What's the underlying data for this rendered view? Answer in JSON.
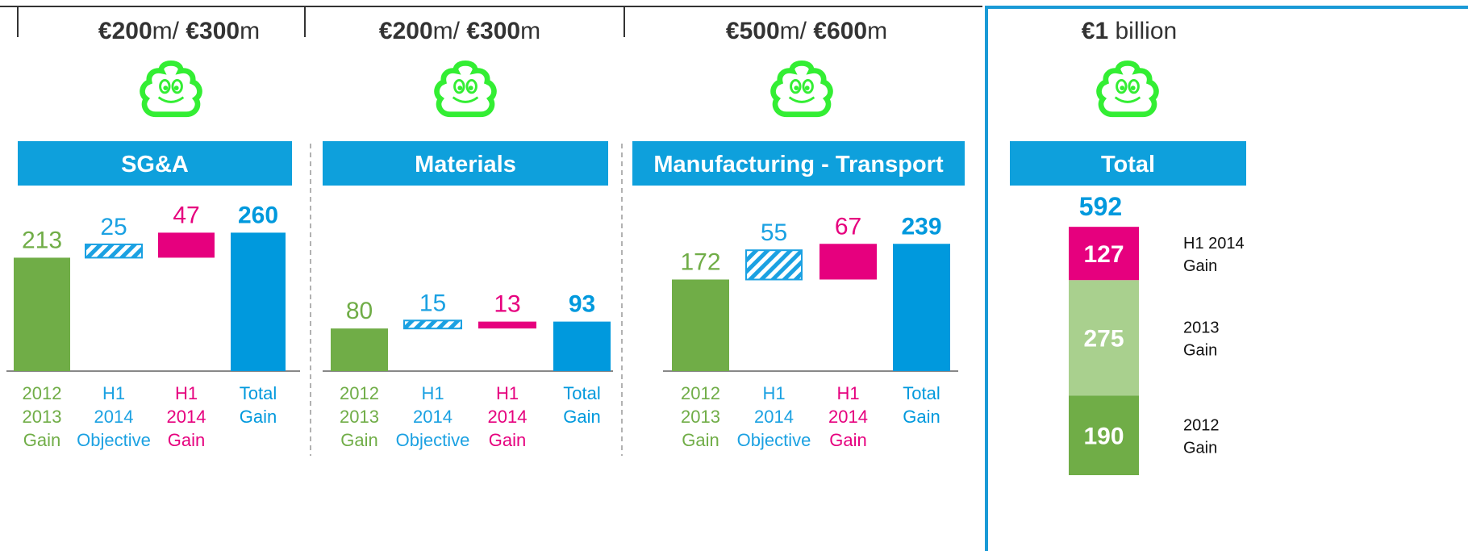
{
  "panels": [
    {
      "target": [
        {
          "text": "€200",
          "bold": true
        },
        {
          "text": "m/ ",
          "bold": false
        },
        {
          "text": "€300",
          "bold": true
        },
        {
          "text": "m",
          "bold": false
        }
      ],
      "chart_data": {
        "type": "waterfall",
        "title": "SG&A",
        "categories": [
          [
            "2012",
            "2013",
            "Gain"
          ],
          [
            "H1",
            "2014",
            "Objective"
          ],
          [
            "H1",
            "2014",
            "Gain"
          ],
          [
            "Total",
            "Gain"
          ]
        ],
        "values": [
          213,
          25,
          47,
          260
        ],
        "colors": [
          "#70ad47",
          "#1ba1e2",
          "#e6007e",
          "#0099dd"
        ],
        "hatched": [
          false,
          true,
          false,
          false
        ]
      }
    },
    {
      "target": [
        {
          "text": "€200",
          "bold": true
        },
        {
          "text": "m/ ",
          "bold": false
        },
        {
          "text": "€300",
          "bold": true
        },
        {
          "text": "m",
          "bold": false
        }
      ],
      "chart_data": {
        "type": "waterfall",
        "title": "Materials",
        "categories": [
          [
            "2012",
            "2013",
            "Gain"
          ],
          [
            "H1",
            "2014",
            "Objective"
          ],
          [
            "H1",
            "2014",
            "Gain"
          ],
          [
            "Total",
            "Gain"
          ]
        ],
        "values": [
          80,
          15,
          13,
          93
        ],
        "colors": [
          "#70ad47",
          "#1ba1e2",
          "#e6007e",
          "#0099dd"
        ],
        "hatched": [
          false,
          true,
          false,
          false
        ]
      }
    },
    {
      "target": [
        {
          "text": "€500",
          "bold": true
        },
        {
          "text": "m/ ",
          "bold": false
        },
        {
          "text": "€600",
          "bold": true
        },
        {
          "text": "m",
          "bold": false
        }
      ],
      "chart_data": {
        "type": "waterfall",
        "title": "Manufacturing - Transport",
        "categories": [
          [
            "2012",
            "2013",
            "Gain"
          ],
          [
            "H1",
            "2014",
            "Objective"
          ],
          [
            "H1",
            "2014",
            "Gain"
          ],
          [
            "Total",
            "Gain"
          ]
        ],
        "values": [
          172,
          55,
          67,
          239
        ],
        "colors": [
          "#70ad47",
          "#1ba1e2",
          "#e6007e",
          "#0099dd"
        ],
        "hatched": [
          false,
          true,
          false,
          false
        ]
      }
    },
    {
      "target": [
        {
          "text": "€1",
          "bold": true
        },
        {
          "text": " billion",
          "bold": false
        }
      ],
      "chart_data": {
        "type": "stacked_bar",
        "title": "Total",
        "total": 592,
        "series": [
          {
            "name": [
              "2012",
              "Gain"
            ],
            "color": "#70ad47",
            "values": [
              190
            ]
          },
          {
            "name": [
              "2013",
              "Gain"
            ],
            "color": "#a9d08e",
            "values": [
              275
            ]
          },
          {
            "name": [
              "H1 2014",
              "Gain"
            ],
            "color": "#e6007e",
            "values": [
              127
            ]
          }
        ]
      }
    }
  ]
}
